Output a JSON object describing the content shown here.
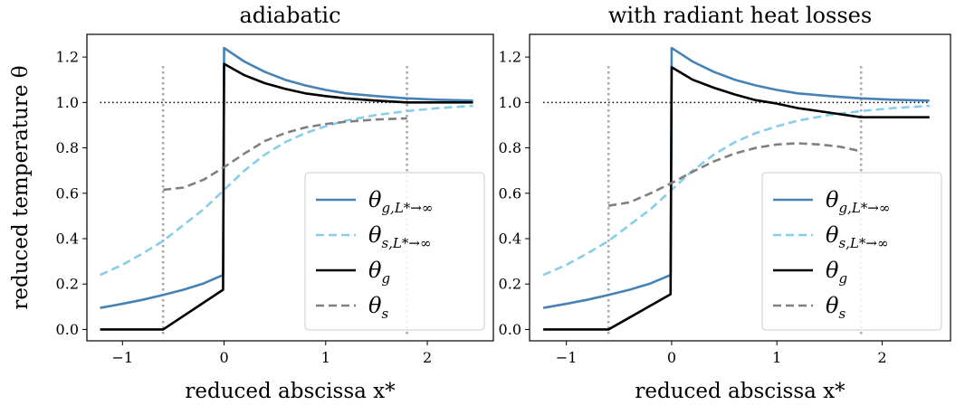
{
  "chart_data": [
    {
      "type": "line",
      "title": "adiabatic",
      "xlabel": "reduced abscissa x*",
      "ylabel": "reduced temperature θ",
      "xlim": [
        -1.35,
        2.65
      ],
      "ylim": [
        -0.05,
        1.3
      ],
      "xticks": [
        -1,
        0,
        1,
        2
      ],
      "xtick_labels": [
        "−1",
        "0",
        "1",
        "2"
      ],
      "yticks": [
        0.0,
        0.2,
        0.4,
        0.6,
        0.8,
        1.0,
        1.2
      ],
      "ytick_labels": [
        "0.0",
        "0.2",
        "0.4",
        "0.6",
        "0.8",
        "1.0",
        "1.2"
      ],
      "grid": false,
      "legend_position": "lower-right",
      "reference_lines": {
        "y_dotted": 1.0,
        "x_dotted": [
          -0.6,
          1.8
        ]
      },
      "series": [
        {
          "name": "θ_{g,L*→∞}",
          "style": "solid",
          "color": "#4682b4",
          "x": [
            -1.22,
            -1.0,
            -0.8,
            -0.6,
            -0.4,
            -0.2,
            -0.01,
            0.0,
            0.2,
            0.4,
            0.6,
            0.8,
            1.0,
            1.2,
            1.5,
            1.8,
            2.1,
            2.45
          ],
          "y": [
            0.095,
            0.113,
            0.131,
            0.152,
            0.175,
            0.203,
            0.24,
            1.24,
            1.18,
            1.135,
            1.1,
            1.075,
            1.055,
            1.04,
            1.028,
            1.018,
            1.012,
            1.008
          ]
        },
        {
          "name": "θ_{s,L*→∞}",
          "style": "dashed",
          "color": "#87ceeb",
          "x": [
            -1.22,
            -1.0,
            -0.8,
            -0.6,
            -0.4,
            -0.2,
            0.0,
            0.2,
            0.4,
            0.6,
            0.8,
            1.0,
            1.2,
            1.5,
            1.8,
            2.1,
            2.45
          ],
          "y": [
            0.24,
            0.285,
            0.335,
            0.39,
            0.46,
            0.53,
            0.615,
            0.7,
            0.77,
            0.825,
            0.865,
            0.895,
            0.92,
            0.945,
            0.962,
            0.975,
            0.985
          ]
        },
        {
          "name": "θ_g",
          "style": "solid",
          "color": "#000000",
          "x": [
            -1.22,
            -0.6,
            -0.01,
            0.0,
            0.2,
            0.4,
            0.6,
            0.8,
            1.0,
            1.2,
            1.5,
            1.8,
            2.45
          ],
          "y": [
            0.0,
            0.0,
            0.175,
            1.17,
            1.12,
            1.085,
            1.06,
            1.04,
            1.028,
            1.018,
            1.008,
            1.0,
            1.0
          ]
        },
        {
          "name": "θ_s",
          "style": "dashed",
          "color": "#808080",
          "x": [
            -0.6,
            -0.4,
            -0.2,
            0.0,
            0.2,
            0.4,
            0.6,
            0.8,
            1.0,
            1.2,
            1.5,
            1.8
          ],
          "y": [
            0.615,
            0.625,
            0.66,
            0.715,
            0.775,
            0.83,
            0.865,
            0.89,
            0.905,
            0.915,
            0.925,
            0.93
          ]
        }
      ]
    },
    {
      "type": "line",
      "title": "with radiant heat losses",
      "xlabel": "reduced abscissa x*",
      "ylabel": "",
      "xlim": [
        -1.35,
        2.65
      ],
      "ylim": [
        -0.05,
        1.3
      ],
      "xticks": [
        -1,
        0,
        1,
        2
      ],
      "xtick_labels": [
        "−1",
        "0",
        "1",
        "2"
      ],
      "yticks": [
        0.0,
        0.2,
        0.4,
        0.6,
        0.8,
        1.0,
        1.2
      ],
      "ytick_labels": [
        "0.0",
        "0.2",
        "0.4",
        "0.6",
        "0.8",
        "1.0",
        "1.2"
      ],
      "grid": false,
      "legend_position": "lower-right",
      "reference_lines": {
        "y_dotted": 1.0,
        "x_dotted": [
          -0.6,
          1.8
        ]
      },
      "series": [
        {
          "name": "θ_{g,L*→∞}",
          "style": "solid",
          "color": "#4682b4",
          "x": [
            -1.22,
            -1.0,
            -0.8,
            -0.6,
            -0.4,
            -0.2,
            -0.01,
            0.0,
            0.2,
            0.4,
            0.6,
            0.8,
            1.0,
            1.2,
            1.5,
            1.8,
            2.1,
            2.45
          ],
          "y": [
            0.095,
            0.113,
            0.131,
            0.152,
            0.175,
            0.203,
            0.24,
            1.24,
            1.18,
            1.135,
            1.1,
            1.075,
            1.055,
            1.04,
            1.028,
            1.018,
            1.012,
            1.008
          ]
        },
        {
          "name": "θ_{s,L*→∞}",
          "style": "dashed",
          "color": "#87ceeb",
          "x": [
            -1.22,
            -1.0,
            -0.8,
            -0.6,
            -0.4,
            -0.2,
            0.0,
            0.2,
            0.4,
            0.6,
            0.8,
            1.0,
            1.2,
            1.5,
            1.8,
            2.1,
            2.45
          ],
          "y": [
            0.24,
            0.285,
            0.335,
            0.39,
            0.46,
            0.53,
            0.615,
            0.7,
            0.77,
            0.825,
            0.865,
            0.895,
            0.92,
            0.945,
            0.962,
            0.975,
            0.985
          ]
        },
        {
          "name": "θ_g",
          "style": "solid",
          "color": "#000000",
          "x": [
            -1.22,
            -0.6,
            -0.01,
            0.0,
            0.2,
            0.4,
            0.6,
            0.8,
            1.0,
            1.2,
            1.5,
            1.8,
            2.45
          ],
          "y": [
            0.0,
            0.0,
            0.155,
            1.155,
            1.1,
            1.065,
            1.035,
            1.01,
            0.995,
            0.975,
            0.955,
            0.935,
            0.935
          ]
        },
        {
          "name": "θ_s",
          "style": "dashed",
          "color": "#808080",
          "x": [
            -0.6,
            -0.4,
            -0.2,
            0.0,
            0.2,
            0.4,
            0.6,
            0.8,
            1.0,
            1.2,
            1.4,
            1.6,
            1.8
          ],
          "y": [
            0.545,
            0.56,
            0.6,
            0.645,
            0.695,
            0.74,
            0.775,
            0.8,
            0.815,
            0.82,
            0.815,
            0.805,
            0.785
          ]
        }
      ]
    }
  ]
}
